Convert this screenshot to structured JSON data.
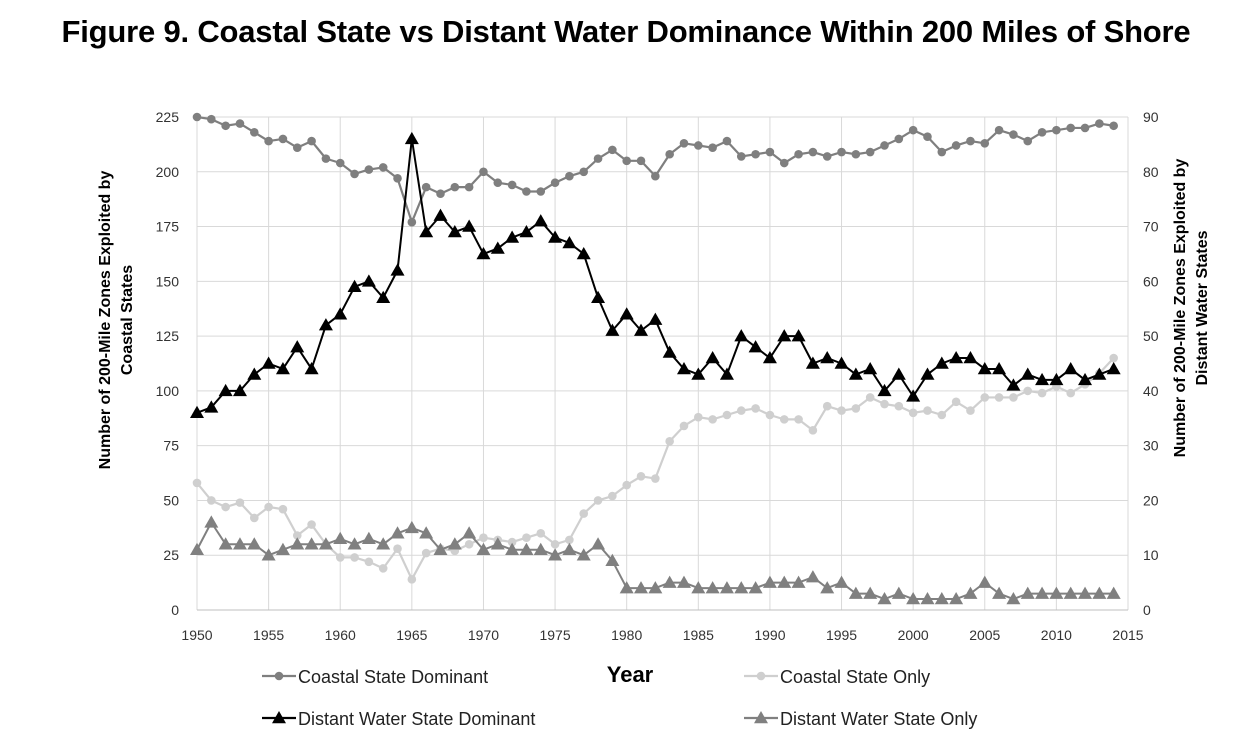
{
  "chart_data": {
    "type": "line",
    "title": "Figure 9. Coastal State vs Distant Water Dominance Within 200 Miles of Shore",
    "xlabel": "Year",
    "ylabel": "Number of 200-Mile Zones Exploited by Coastal States",
    "ylabel_lines": [
      "Number of 200-Mile Zones Exploited by",
      "Coastal States"
    ],
    "y2label": "Number of 200-Mile Zones Exploited by Distant Water States",
    "y2label_lines": [
      "Number of 200-Mile Zones Exploited by",
      "Distant Water States"
    ],
    "xlim": [
      1950,
      2015
    ],
    "ylim": [
      0,
      225
    ],
    "y2lim": [
      0,
      90
    ],
    "x_ticks": [
      1950,
      1955,
      1960,
      1965,
      1970,
      1975,
      1980,
      1985,
      1990,
      1995,
      2000,
      2005,
      2010,
      2015
    ],
    "y_ticks": [
      0,
      25,
      50,
      75,
      100,
      125,
      150,
      175,
      200,
      225
    ],
    "y2_ticks": [
      0,
      10,
      20,
      30,
      40,
      50,
      60,
      70,
      80,
      90
    ],
    "grid": true,
    "legend_position": "bottom",
    "x": [
      1950,
      1951,
      1952,
      1953,
      1954,
      1955,
      1956,
      1957,
      1958,
      1959,
      1960,
      1961,
      1962,
      1963,
      1964,
      1965,
      1966,
      1967,
      1968,
      1969,
      1970,
      1971,
      1972,
      1973,
      1974,
      1975,
      1976,
      1977,
      1978,
      1979,
      1980,
      1981,
      1982,
      1983,
      1984,
      1985,
      1986,
      1987,
      1988,
      1989,
      1990,
      1991,
      1992,
      1993,
      1994,
      1995,
      1996,
      1997,
      1998,
      1999,
      2000,
      2001,
      2002,
      2003,
      2004,
      2005,
      2006,
      2007,
      2008,
      2009,
      2010,
      2011,
      2012,
      2013,
      2014
    ],
    "series": [
      {
        "name": "Coastal State Dominant",
        "axis": "left",
        "color": "#7f7f7f",
        "marker": "circle",
        "values": [
          225,
          224,
          221,
          222,
          218,
          214,
          215,
          211,
          214,
          206,
          204,
          199,
          201,
          202,
          197,
          177,
          193,
          190,
          193,
          193,
          200,
          195,
          194,
          191,
          191,
          195,
          198,
          200,
          206,
          210,
          205,
          205,
          198,
          208,
          213,
          212,
          211,
          214,
          207,
          208,
          209,
          204,
          208,
          209,
          207,
          209,
          208,
          209,
          212,
          215,
          219,
          216,
          209,
          212,
          214,
          213,
          219,
          217,
          214,
          218,
          219,
          220,
          220,
          222,
          221
        ]
      },
      {
        "name": "Coastal State Only",
        "axis": "left",
        "color": "#cfcfcf",
        "marker": "circle",
        "values": [
          58,
          50,
          47,
          49,
          42,
          47,
          46,
          34,
          39,
          30,
          24,
          24,
          22,
          19,
          28,
          14,
          26,
          28,
          27,
          30,
          33,
          32,
          31,
          33,
          35,
          30,
          32,
          44,
          50,
          52,
          57,
          61,
          60,
          77,
          84,
          88,
          87,
          89,
          91,
          92,
          89,
          87,
          87,
          82,
          93,
          91,
          92,
          97,
          94,
          93,
          90,
          91,
          89,
          95,
          91,
          97,
          97,
          97,
          100,
          99,
          102,
          99,
          103,
          108,
          115
        ]
      },
      {
        "name": "Distant Water State Dominant",
        "axis": "right",
        "color": "#000000",
        "marker": "triangle",
        "values": [
          36,
          37,
          40,
          40,
          43,
          45,
          44,
          48,
          44,
          52,
          54,
          59,
          60,
          57,
          62,
          86,
          69,
          72,
          69,
          70,
          65,
          66,
          68,
          69,
          71,
          68,
          67,
          65,
          57,
          51,
          54,
          51,
          53,
          47,
          44,
          43,
          46,
          43,
          50,
          48,
          46,
          50,
          50,
          45,
          46,
          45,
          43,
          44,
          40,
          43,
          39,
          43,
          45,
          46,
          46,
          44,
          44,
          41,
          43,
          42,
          42,
          44,
          42,
          43,
          44
        ]
      },
      {
        "name": "Distant Water State Only",
        "axis": "right",
        "color": "#808080",
        "marker": "triangle",
        "values": [
          11,
          16,
          12,
          12,
          12,
          10,
          11,
          12,
          12,
          12,
          13,
          12,
          13,
          12,
          14,
          15,
          14,
          11,
          12,
          14,
          11,
          12,
          11,
          11,
          11,
          10,
          11,
          10,
          12,
          9,
          4,
          4,
          4,
          5,
          5,
          4,
          4,
          4,
          4,
          4,
          5,
          5,
          5,
          6,
          4,
          5,
          3,
          3,
          2,
          3,
          2,
          2,
          2,
          2,
          3,
          5,
          3,
          2,
          3,
          3,
          3,
          3,
          3,
          3,
          3
        ]
      }
    ]
  }
}
